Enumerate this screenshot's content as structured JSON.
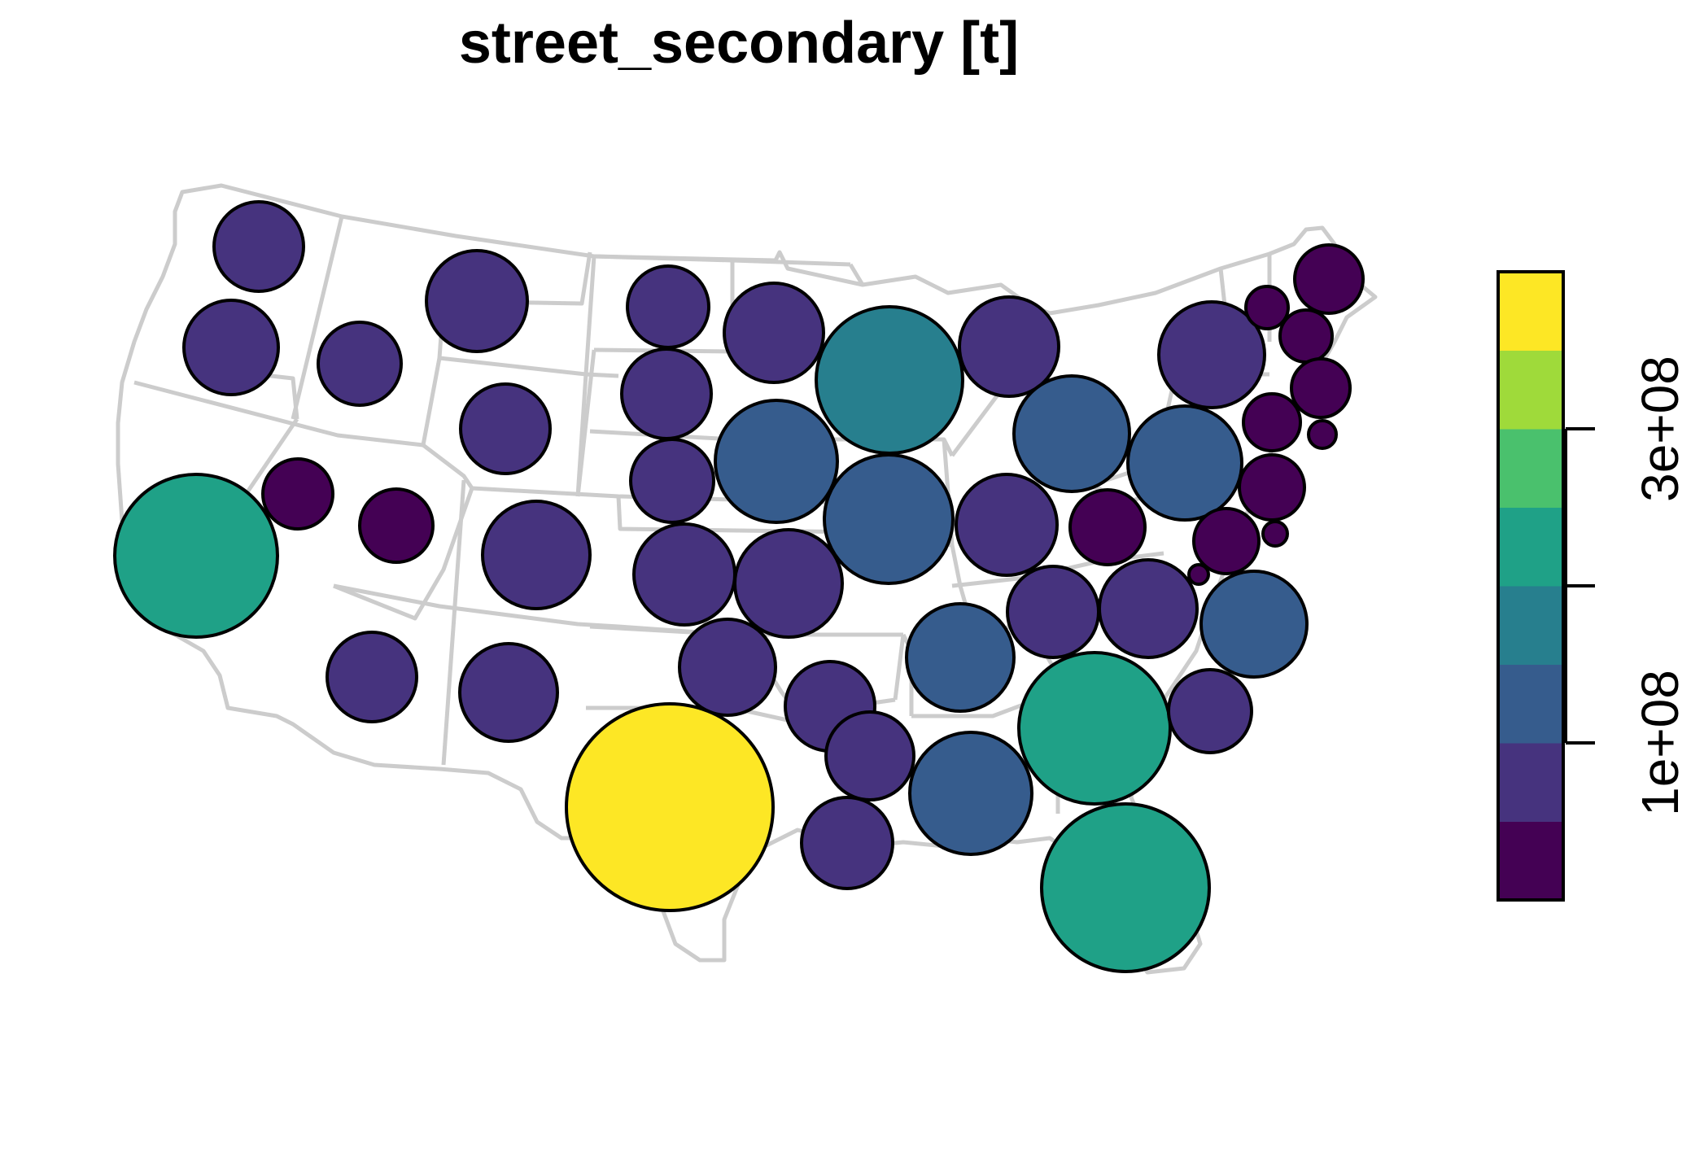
{
  "map": {
    "title": "street_secondary [t]",
    "background_color": "#ffffff",
    "state_border_color": "#cccccc",
    "symbol_stroke_color": "#000000"
  },
  "legend": {
    "type": "colorbar",
    "placement": "right",
    "range": [
      0,
      400000000
    ],
    "classes": [
      {
        "from": 0,
        "to": 50000000,
        "color": "#440154"
      },
      {
        "from": 50000000,
        "to": 100000000,
        "color": "#46337e"
      },
      {
        "from": 100000000,
        "to": 150000000,
        "color": "#365c8d"
      },
      {
        "from": 150000000,
        "to": 200000000,
        "color": "#277f8e"
      },
      {
        "from": 200000000,
        "to": 250000000,
        "color": "#1fa187"
      },
      {
        "from": 250000000,
        "to": 300000000,
        "color": "#4ac16d"
      },
      {
        "from": 300000000,
        "to": 350000000,
        "color": "#9fda3a"
      },
      {
        "from": 350000000,
        "to": 400000000,
        "color": "#fde725"
      }
    ],
    "ticks": [
      {
        "value": 100000000,
        "label": "1e+08"
      },
      {
        "value": 200000000,
        "label": ""
      },
      {
        "value": 300000000,
        "label": "3e+08"
      }
    ]
  }
}
